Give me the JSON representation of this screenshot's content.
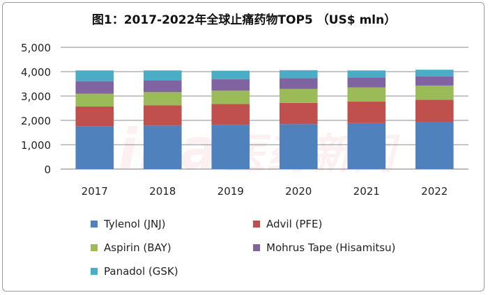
{
  "chart_data": {
    "type": "bar",
    "stacked": true,
    "title": "图1：2017-2022年全球止痛药物TOP5 （US$ mln）",
    "categories": [
      "2017",
      "2018",
      "2019",
      "2020",
      "2021",
      "2022"
    ],
    "series": [
      {
        "name": "Tylenol (JNJ)",
        "color": "#4f81bd",
        "values": [
          1750,
          1790,
          1820,
          1850,
          1890,
          1930
        ]
      },
      {
        "name": "Advil (PFE)",
        "color": "#c0504d",
        "values": [
          820,
          830,
          850,
          870,
          880,
          920
        ]
      },
      {
        "name": "Aspirin (BAY)",
        "color": "#9bbb59",
        "values": [
          530,
          540,
          550,
          570,
          580,
          580
        ]
      },
      {
        "name": "Mohrus Tape (Hisamitsu)",
        "color": "#8064a2",
        "values": [
          510,
          490,
          470,
          440,
          410,
          380
        ]
      },
      {
        "name": "Panadol (GSK)",
        "color": "#4bacc6",
        "values": [
          440,
          400,
          350,
          330,
          290,
          270
        ]
      }
    ],
    "yticks": [
      "0",
      "1,000",
      "2,000",
      "3,000",
      "4,000",
      "5,000"
    ],
    "ylim": [
      0,
      5000
    ],
    "grid": true,
    "legend_position": "bottom",
    "xlabel": "",
    "ylabel": ""
  },
  "watermark": {
    "latin": "sina",
    "cn": "医药新闻"
  }
}
